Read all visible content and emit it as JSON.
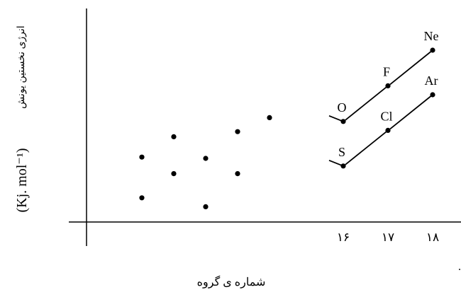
{
  "chart_data": {
    "type": "scatter",
    "title": "",
    "xlabel": "شماره ی گروه",
    "ylabel_unit": "(Kj. mol⁻¹)",
    "ylabel_text": "انرژی نخستین یونش",
    "x_ticks": [
      "۱۶",
      "۱۷",
      "۱۸"
    ],
    "grid": false,
    "points_period3_unlabeled": [
      {
        "x": 1,
        "y": 0.19
      },
      {
        "x": 2,
        "y": 0.38
      },
      {
        "x": 3,
        "y": 0.12
      },
      {
        "x": 4,
        "y": 0.38
      }
    ],
    "points_period2_unlabeled": [
      {
        "x": 1,
        "y": 0.51
      },
      {
        "x": 2,
        "y": 0.67
      },
      {
        "x": 3,
        "y": 0.5
      },
      {
        "x": 4,
        "y": 0.71
      },
      {
        "x": 5,
        "y": 0.82
      }
    ],
    "series": [
      {
        "name": "S Cl Ar",
        "points": [
          {
            "label": "S",
            "x": 16,
            "y": 0.44
          },
          {
            "label": "Cl",
            "x": 17,
            "y": 0.72
          },
          {
            "label": "Ar",
            "x": 18,
            "y": 1.0
          }
        ]
      },
      {
        "name": "O F Ne",
        "points": [
          {
            "label": "O",
            "x": 16,
            "y": 0.79
          },
          {
            "label": "F",
            "x": 17,
            "y": 1.07
          },
          {
            "label": "Ne",
            "x": 18,
            "y": 1.35
          }
        ]
      }
    ]
  }
}
